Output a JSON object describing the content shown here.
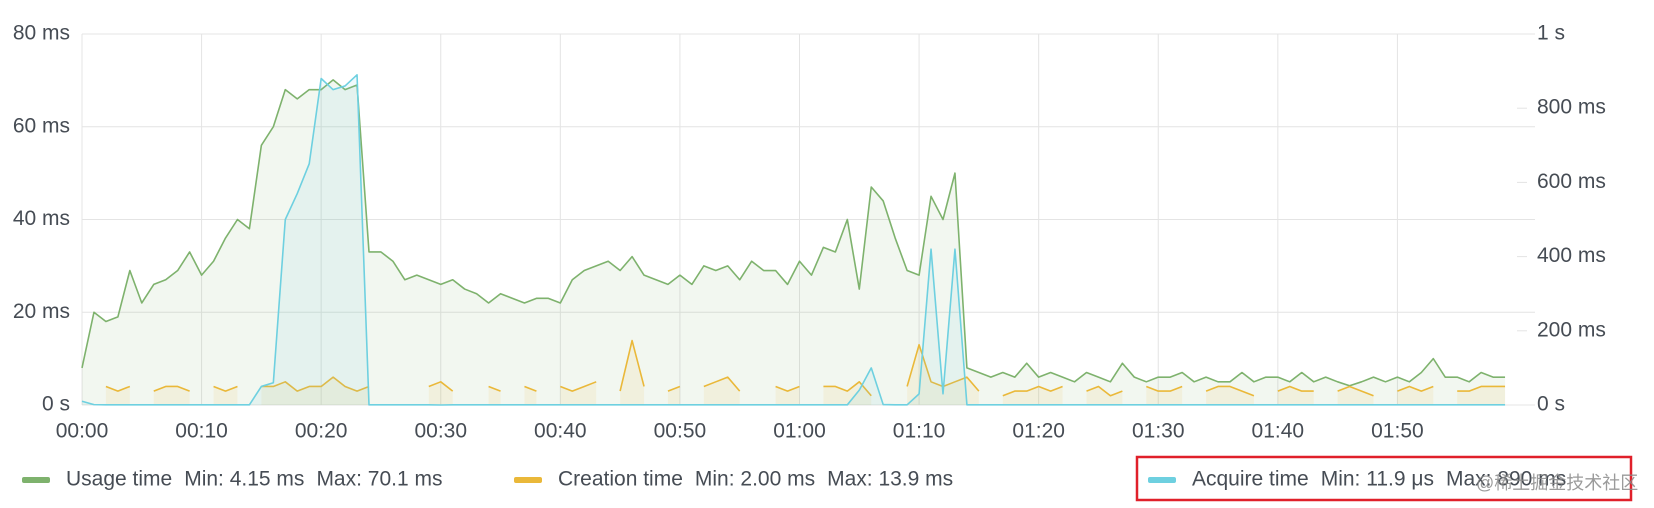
{
  "chart_data": {
    "type": "line",
    "x": [
      0,
      1,
      2,
      3,
      4,
      5,
      6,
      7,
      8,
      9,
      10,
      11,
      12,
      13,
      14,
      15,
      16,
      17,
      18,
      19,
      20,
      21,
      22,
      23,
      24,
      25,
      26,
      27,
      28,
      29,
      30,
      31,
      32,
      33,
      34,
      35,
      36,
      37,
      38,
      39,
      40,
      41,
      42,
      43,
      44,
      45,
      46,
      47,
      48,
      49,
      50,
      51,
      52,
      53,
      54,
      55,
      56,
      57,
      58,
      59,
      60,
      61,
      62,
      63,
      64,
      65,
      66,
      67,
      68,
      69,
      70,
      71,
      72,
      73,
      74,
      75,
      76,
      77,
      78,
      79,
      80,
      81,
      82,
      83,
      84,
      85,
      86,
      87,
      88,
      89,
      90,
      91,
      92,
      93,
      94,
      95,
      96,
      97,
      98,
      99,
      100,
      101,
      102,
      103,
      104,
      105,
      106,
      107,
      108,
      109,
      110,
      111,
      112,
      113,
      114,
      115,
      116,
      117,
      118,
      119
    ],
    "xlim": [
      0,
      120
    ],
    "xticks": [
      {
        "value": 0,
        "label": "00:00"
      },
      {
        "value": 10,
        "label": "00:10"
      },
      {
        "value": 20,
        "label": "00:20"
      },
      {
        "value": 30,
        "label": "00:30"
      },
      {
        "value": 40,
        "label": "00:40"
      },
      {
        "value": 50,
        "label": "00:50"
      },
      {
        "value": 60,
        "label": "01:00"
      },
      {
        "value": 70,
        "label": "01:10"
      },
      {
        "value": 80,
        "label": "01:20"
      },
      {
        "value": 90,
        "label": "01:30"
      },
      {
        "value": 100,
        "label": "01:40"
      },
      {
        "value": 110,
        "label": "01:50"
      }
    ],
    "ylim": [
      0,
      80
    ],
    "yticks": [
      {
        "value": 0,
        "label": "0 s"
      },
      {
        "value": 20,
        "label": "20 ms"
      },
      {
        "value": 40,
        "label": "40 ms"
      },
      {
        "value": 60,
        "label": "60 ms"
      },
      {
        "value": 80,
        "label": "80 ms"
      }
    ],
    "y2lim": [
      0,
      1000
    ],
    "y2ticks": [
      {
        "value": 0,
        "label": "0 s"
      },
      {
        "value": 200,
        "label": "200 ms"
      },
      {
        "value": 400,
        "label": "400 ms"
      },
      {
        "value": 600,
        "label": "600 ms"
      },
      {
        "value": 800,
        "label": "800 ms"
      },
      {
        "value": 1000,
        "label": "1 s"
      }
    ],
    "grid": true,
    "series": [
      {
        "name": "Usage time",
        "color": "#7eb26d",
        "min_label": "Min: 4.15 ms",
        "max_label": "Max: 70.1 ms",
        "values": [
          8,
          20,
          18,
          19,
          29,
          22,
          26,
          27,
          29,
          33,
          28,
          31,
          36,
          40,
          38,
          56,
          60,
          68,
          66,
          68,
          68,
          70.1,
          68,
          69,
          33,
          33,
          31,
          27,
          28,
          27,
          26,
          27,
          25,
          24,
          22,
          24,
          23,
          22,
          23,
          23,
          22,
          27,
          29,
          30,
          31,
          29,
          32,
          28,
          27,
          26,
          28,
          26,
          30,
          29,
          30,
          27,
          31,
          29,
          29,
          26,
          31,
          28,
          34,
          33,
          40,
          25,
          47,
          44,
          36,
          29,
          28,
          45,
          40,
          50,
          8,
          7,
          6,
          7,
          6,
          9,
          6,
          7,
          6,
          5,
          7,
          6,
          5,
          9,
          6,
          5,
          6,
          6,
          7,
          5,
          6,
          5,
          5,
          7,
          5,
          6,
          6,
          5,
          7,
          5,
          6,
          5,
          4.15,
          5,
          6,
          5,
          6,
          5,
          7,
          10,
          6,
          6,
          5,
          7,
          6,
          6
        ]
      },
      {
        "name": "Creation time",
        "color": "#eab839",
        "min_label": "Min: 2.00 ms",
        "max_label": "Max: 13.9 ms",
        "values": [
          7,
          null,
          4,
          3,
          4,
          null,
          3,
          4,
          4,
          3,
          null,
          4,
          3,
          4,
          null,
          4,
          4,
          5,
          3,
          4,
          4,
          6,
          4,
          3,
          4,
          null,
          null,
          null,
          null,
          4,
          5,
          3,
          null,
          null,
          4,
          3,
          null,
          4,
          3,
          null,
          4,
          3,
          4,
          5,
          null,
          3,
          13.9,
          4,
          null,
          3,
          4,
          null,
          4,
          5,
          6,
          3,
          null,
          null,
          4,
          3,
          4,
          null,
          4,
          4,
          3,
          5,
          2,
          null,
          null,
          4,
          13,
          5,
          4,
          5,
          6,
          3,
          null,
          2,
          3,
          3,
          4,
          3,
          4,
          null,
          3,
          4,
          2,
          3,
          null,
          4,
          3,
          3,
          4,
          null,
          3,
          4,
          4,
          3,
          2,
          null,
          3,
          4,
          3,
          3,
          null,
          3,
          4,
          3,
          2,
          null,
          3,
          4,
          3,
          4,
          null,
          3,
          3,
          4,
          4,
          4
        ]
      },
      {
        "name": "Acquire time",
        "color": "#6ed0e0",
        "axis": "y2",
        "min_label": "Min: 11.9 μs",
        "max_label": "Max: 890 ms",
        "values": [
          10,
          1,
          0.5,
          0.5,
          0.5,
          0.5,
          0.5,
          0.5,
          0.5,
          0.5,
          0.5,
          0.5,
          0.5,
          0.5,
          0.5,
          50,
          60,
          500,
          570,
          650,
          880,
          850,
          860,
          890,
          0.5,
          0.5,
          0.5,
          0.5,
          0.5,
          0.5,
          0.0119,
          0.5,
          0.5,
          0.5,
          0.5,
          0.5,
          0.5,
          0.5,
          0.5,
          0.5,
          0.5,
          0.5,
          0.5,
          0.5,
          0.5,
          0.5,
          0.5,
          0.5,
          0.5,
          0.5,
          0.5,
          0.5,
          0.5,
          0.5,
          0.5,
          0.5,
          0.5,
          0.5,
          0.5,
          0.5,
          0.5,
          0.5,
          0.5,
          0.5,
          0.5,
          40,
          100,
          1,
          0.5,
          0.5,
          30,
          420,
          30,
          420,
          0.5,
          0.5,
          0.5,
          0.5,
          0.5,
          0.5,
          0.5,
          0.5,
          0.5,
          0.5,
          0.5,
          0.5,
          0.5,
          0.5,
          0.5,
          0.5,
          0.5,
          0.5,
          0.5,
          0.5,
          0.5,
          0.5,
          0.5,
          0.5,
          0.5,
          0.5,
          0.5,
          0.5,
          0.5,
          0.5,
          0.5,
          0.5,
          0.5,
          0.5,
          0.5,
          0.5,
          0.5,
          0.5,
          0.5,
          0.5,
          0.5,
          0.5,
          0.5,
          0.5,
          0.5,
          0.5
        ]
      }
    ],
    "watermark": "@稀土掘金技术社区"
  }
}
